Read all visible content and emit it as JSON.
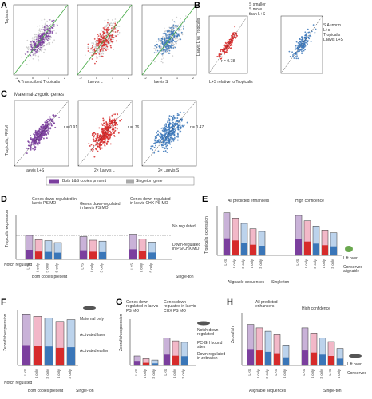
{
  "panel_letters": [
    "A",
    "B",
    "C",
    "D",
    "E",
    "F",
    "G",
    "H"
  ],
  "colors": {
    "purple": "#7b3f9e",
    "red": "#d62b2b",
    "blue": "#3a76b8",
    "gray": "#a9a9a9",
    "lightgray": "#cfcfcf",
    "diag_green": "#44aa44",
    "pink": "#f2b8c8",
    "lightblue": "#bcd3ec",
    "lightpurple": "#c9b2d8"
  },
  "A": {
    "ylabel": "Topia ss",
    "xlabels": [
      "A Transcribed Tropicalis",
      "Laevis L",
      "laevis S"
    ],
    "ticks": [
      "-2",
      "0",
      "1",
      "2"
    ]
  },
  "B": {
    "ylabel": "Laevis L vs Tropicalis",
    "xlabel": "L+S relative to Tropicalis",
    "ylabel2": "Simi levels vs Tropicalis",
    "ann": [
      "S smaller",
      "S more",
      "than L+S",
      "S Aunorm",
      "L+s",
      "Tropicalis",
      "Laevis L+S"
    ],
    "stat": "r = 0.78"
  },
  "C": {
    "title": "Maternal-zygotic genes",
    "ylabel": "Tropicalis, FPKM",
    "xlabels": [
      "laevis L+S",
      "2× Laevis L",
      "2× Laevis S"
    ],
    "stats": [
      "r = 0.91",
      "r = .76",
      "r = 0.47"
    ],
    "legend": {
      "item1": "Both L&S copies present",
      "item2": "Singleton gene"
    }
  },
  "D": {
    "ylabel": "Tropicalis expression",
    "groups": [
      "Genes down-regulated in laevis PS MO",
      "Genes down-regulated in laevis PS MO",
      "Genes down-regulated in laevis CHX PS MO"
    ],
    "cats": [
      "L+S",
      "L only",
      "S only",
      "S only"
    ],
    "groupfoot": [
      "Both copies present",
      "Single-ton"
    ],
    "rowlabel": "Notch regulated",
    "ann": [
      "No regulated",
      "Down-regulated in PS/CHX MO"
    ]
  },
  "E": {
    "ylabel": "Tropicalis expression",
    "groups": [
      "All predicted enhancers",
      "High confidence"
    ],
    "cats": [
      "L+S",
      "L only",
      "S only",
      "L only",
      "S only"
    ],
    "foot": [
      "Alignable sequences",
      "Single ton"
    ],
    "legend": [
      "Lift over",
      "Conserved alignable"
    ]
  },
  "F": {
    "ylabel": "Zebrafish expression",
    "cats": [
      "L+S",
      "L only",
      "S only",
      "L only",
      "S only"
    ],
    "foot": [
      "Both copies present",
      "Single-ton"
    ],
    "legend": [
      "Maternal only",
      "Activated later",
      "Activated earlier"
    ],
    "rowlabel": "Notch regulated"
  },
  "G": {
    "ylabel": "Zebrafish expression",
    "groups": [
      "Genes down-regulated in laevis PS MO",
      "Genes down-regulated in laevis CHX PS MO"
    ],
    "cats": [
      "L+S",
      "L only",
      "S only",
      "L+S",
      "L only",
      "S only"
    ],
    "legend": [
      "Notch down-regulated",
      "PC-GH bound sites",
      "Down-regulated in zebrafish"
    ]
  },
  "H": {
    "ylabel": "Zebrafish",
    "groups": [
      "All predicted enhancers",
      "High confidence"
    ],
    "cats": [
      "L+S",
      "L only",
      "S only",
      "L+S",
      "L only",
      "S only"
    ],
    "foot": [
      "Alignable sequences",
      "Single-ton"
    ],
    "legend": [
      "Lift over",
      "Conserved"
    ]
  },
  "chart_data": [
    {
      "type": "scatter",
      "title": "",
      "panel": "A",
      "series": [
        {
          "name": "L+S",
          "color": "#7b3f9e"
        },
        {
          "name": "L",
          "color": "#d62b2b"
        },
        {
          "name": "S",
          "color": "#3a76b8"
        }
      ],
      "xlim": [
        -2,
        2
      ],
      "ylim": [
        -2,
        2
      ]
    },
    {
      "type": "bar",
      "panel": "D",
      "categories": [
        "L+S",
        "L only",
        "S only",
        "S only",
        "L+S",
        "L only",
        "S only",
        "L+S",
        "L only",
        "S only"
      ],
      "values": [
        1.0,
        0.82,
        0.78,
        0.7,
        0.95,
        0.8,
        0.76,
        1.05,
        0.85,
        0.72
      ],
      "ylim": [
        0,
        1.5
      ]
    },
    {
      "type": "bar",
      "panel": "E",
      "categories": [
        "L+S",
        "L only",
        "S only",
        "L only",
        "S only",
        "L+S",
        "L only",
        "S only",
        "L only",
        "S only"
      ],
      "values": [
        1.6,
        1.4,
        1.2,
        1.0,
        0.9,
        1.5,
        1.3,
        1.1,
        0.95,
        0.85
      ],
      "ylim": [
        0,
        1.8
      ]
    },
    {
      "type": "bar",
      "panel": "F",
      "categories": [
        "L+S",
        "L only",
        "S only",
        "L only",
        "S only"
      ],
      "values": [
        1.5,
        1.45,
        1.4,
        1.3,
        1.35
      ],
      "ylim": [
        0,
        1.6
      ]
    },
    {
      "type": "bar",
      "panel": "G",
      "categories": [
        "L+S",
        "L only",
        "S only",
        "L+S",
        "L only",
        "S only"
      ],
      "values": [
        0.35,
        0.25,
        0.2,
        1.0,
        0.9,
        0.85
      ],
      "ylim": [
        0,
        1.4
      ]
    },
    {
      "type": "bar",
      "panel": "H",
      "categories": [
        "L+S",
        "L only",
        "S only",
        "L only",
        "S only",
        "L+S",
        "L only",
        "S only",
        "L only",
        "S only"
      ],
      "values": [
        1.2,
        1.1,
        1.0,
        0.9,
        0.6,
        1.1,
        0.95,
        0.8,
        0.7,
        0.5
      ],
      "ylim": [
        0,
        1.4
      ]
    }
  ]
}
